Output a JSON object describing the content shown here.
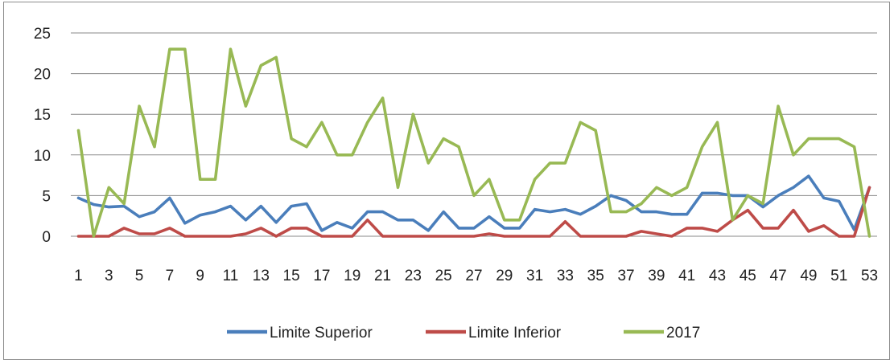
{
  "chart_data": {
    "type": "line",
    "title": "",
    "xlabel": "",
    "ylabel": "",
    "x": [
      1,
      2,
      3,
      4,
      5,
      6,
      7,
      8,
      9,
      10,
      11,
      12,
      13,
      14,
      15,
      16,
      17,
      18,
      19,
      20,
      21,
      22,
      23,
      24,
      25,
      26,
      27,
      28,
      29,
      30,
      31,
      32,
      33,
      34,
      35,
      36,
      37,
      38,
      39,
      40,
      41,
      42,
      43,
      44,
      45,
      46,
      47,
      48,
      49,
      50,
      51,
      52,
      53
    ],
    "x_tick_labels": [
      "1",
      "3",
      "5",
      "7",
      "9",
      "11",
      "13",
      "15",
      "17",
      "19",
      "21",
      "23",
      "25",
      "27",
      "29",
      "31",
      "33",
      "35",
      "37",
      "39",
      "41",
      "43",
      "45",
      "47",
      "49",
      "51",
      "53"
    ],
    "ylim": [
      0,
      25
    ],
    "y_ticks": [
      0,
      5,
      10,
      15,
      20,
      25
    ],
    "grid": "horizontal",
    "legend_position": "bottom",
    "series": [
      {
        "name": "Limite Superior",
        "color": "#4a7ebb",
        "values": [
          4.7,
          3.9,
          3.6,
          3.7,
          2.4,
          3.0,
          4.7,
          1.6,
          2.6,
          3.0,
          3.7,
          2.0,
          3.7,
          1.7,
          3.7,
          4.0,
          0.7,
          1.7,
          1.0,
          3.0,
          3.0,
          2.0,
          2.0,
          0.7,
          3.0,
          1.0,
          1.0,
          2.4,
          1.0,
          1.0,
          3.3,
          3.0,
          3.3,
          2.7,
          3.7,
          5.0,
          4.4,
          3.0,
          3.0,
          2.7,
          2.7,
          5.3,
          5.3,
          5.0,
          5.0,
          3.6,
          5.0,
          6.0,
          7.4,
          4.7,
          4.3,
          0.8,
          6.0
        ]
      },
      {
        "name": "Limite Inferior",
        "color": "#be4b48",
        "values": [
          0,
          0,
          0,
          1.0,
          0.3,
          0.3,
          1.0,
          0,
          0,
          0,
          0,
          0.3,
          1.0,
          0,
          1.0,
          1.0,
          0,
          0,
          0,
          2.0,
          0,
          0,
          0,
          0,
          0,
          0,
          0,
          0.3,
          0,
          0,
          0,
          0,
          1.8,
          0,
          0,
          0,
          0,
          0.6,
          0.3,
          0,
          1.0,
          1.0,
          0.6,
          2.0,
          3.2,
          1.0,
          1.0,
          3.2,
          0.6,
          1.3,
          0,
          0,
          6.0
        ]
      },
      {
        "name": "2017",
        "color": "#98b954",
        "values": [
          13,
          0,
          6,
          4,
          16,
          11,
          23,
          23,
          7,
          7,
          23,
          16,
          21,
          22,
          12,
          11,
          14,
          10,
          10,
          14,
          17,
          6,
          15,
          9,
          12,
          11,
          5,
          7,
          2,
          2,
          7,
          9,
          9,
          14,
          13,
          3,
          3,
          4,
          6,
          5,
          6,
          11,
          14,
          2,
          5,
          4,
          16,
          10,
          12,
          12,
          12,
          11,
          0
        ]
      }
    ]
  }
}
